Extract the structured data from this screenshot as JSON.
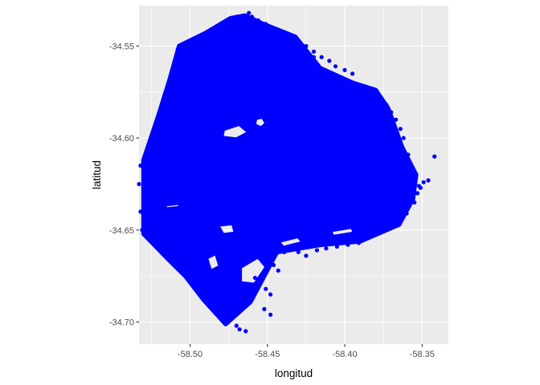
{
  "chart_data": {
    "type": "scatter",
    "title": "",
    "xlabel": "longitud",
    "ylabel": "latitud",
    "xlim": [
      -58.533,
      -58.333
    ],
    "ylim": [
      -34.712,
      -34.528
    ],
    "x_ticks": [
      -58.5,
      -58.45,
      -58.4,
      -58.35
    ],
    "y_ticks": [
      -34.55,
      -34.6,
      -34.65,
      -34.7
    ],
    "x_tick_labels": [
      "-58.50",
      "-58.45",
      "-58.40",
      "-58.35"
    ],
    "y_tick_labels": [
      "-34.55",
      "-34.60",
      "-34.65",
      "-34.70"
    ],
    "grid": true,
    "legend": "none",
    "point_color": "#0000ff",
    "panel_background": "#ebebeb",
    "grid_color": "#ffffff",
    "region_outline": [
      [
        -58.4645,
        -34.5335
      ],
      [
        -58.474,
        -34.535
      ],
      [
        -58.49,
        -34.543
      ],
      [
        -58.507,
        -34.55
      ],
      [
        -58.513,
        -34.568
      ],
      [
        -58.52,
        -34.587
      ],
      [
        -58.53,
        -34.612
      ],
      [
        -58.53,
        -34.652
      ],
      [
        -58.515,
        -34.665
      ],
      [
        -58.503,
        -34.675
      ],
      [
        -58.491,
        -34.688
      ],
      [
        -58.477,
        -34.701
      ],
      [
        -58.461,
        -34.689
      ],
      [
        -58.444,
        -34.662
      ],
      [
        -58.416,
        -34.658
      ],
      [
        -58.39,
        -34.656
      ],
      [
        -58.365,
        -34.647
      ],
      [
        -58.356,
        -34.633
      ],
      [
        -58.354,
        -34.62
      ],
      [
        -58.363,
        -34.605
      ],
      [
        -58.372,
        -34.584
      ],
      [
        -58.38,
        -34.574
      ],
      [
        -58.395,
        -34.57
      ],
      [
        -58.416,
        -34.562
      ],
      [
        -58.432,
        -34.545
      ],
      [
        -58.453,
        -34.538
      ]
    ],
    "holes": [
      [
        [
          -58.479,
          -34.595
        ],
        [
          -58.468,
          -34.592
        ],
        [
          -58.461,
          -34.597
        ],
        [
          -58.47,
          -34.601
        ],
        [
          -58.48,
          -34.6
        ]
      ],
      [
        [
          -58.458,
          -34.589
        ],
        [
          -58.453,
          -34.588
        ],
        [
          -58.45,
          -34.592
        ],
        [
          -58.454,
          -34.595
        ],
        [
          -58.459,
          -34.593
        ]
      ],
      [
        [
          -58.517,
          -34.636
        ],
        [
          -58.507,
          -34.635
        ],
        [
          -58.505,
          -34.638
        ],
        [
          -58.516,
          -34.639
        ]
      ],
      [
        [
          -58.483,
          -34.647
        ],
        [
          -58.472,
          -34.646
        ],
        [
          -58.47,
          -34.652
        ],
        [
          -58.479,
          -34.653
        ]
      ],
      [
        [
          -58.468,
          -34.67
        ],
        [
          -58.456,
          -34.664
        ],
        [
          -58.45,
          -34.67
        ],
        [
          -58.458,
          -34.68
        ],
        [
          -58.468,
          -34.679
        ]
      ],
      [
        [
          -58.49,
          -34.665
        ],
        [
          -58.483,
          -34.662
        ],
        [
          -58.48,
          -34.67
        ],
        [
          -58.487,
          -34.673
        ]
      ],
      [
        [
          -58.444,
          -34.656
        ],
        [
          -58.43,
          -34.653
        ],
        [
          -58.426,
          -34.657
        ],
        [
          -58.44,
          -34.66
        ]
      ],
      [
        [
          -58.41,
          -34.65
        ],
        [
          -58.395,
          -34.648
        ],
        [
          -58.393,
          -34.652
        ],
        [
          -58.408,
          -34.654
        ]
      ]
    ],
    "outlier_points": [
      [
        -58.342,
        -34.61
      ],
      [
        -58.346,
        -34.623
      ],
      [
        -58.349,
        -34.624
      ],
      [
        -58.352,
        -34.626
      ],
      [
        -58.356,
        -34.619
      ],
      [
        -58.358,
        -34.615
      ],
      [
        -58.359,
        -34.609
      ],
      [
        -58.362,
        -34.6
      ],
      [
        -58.364,
        -34.595
      ],
      [
        -58.367,
        -34.59
      ],
      [
        -58.37,
        -34.586
      ],
      [
        -58.373,
        -34.582
      ],
      [
        -58.378,
        -34.578
      ],
      [
        -58.382,
        -34.576
      ],
      [
        -58.386,
        -34.574
      ],
      [
        -58.39,
        -34.572
      ],
      [
        -58.395,
        -34.565
      ],
      [
        -58.4,
        -34.563
      ],
      [
        -58.406,
        -34.561
      ],
      [
        -58.41,
        -34.558
      ],
      [
        -58.415,
        -34.556
      ],
      [
        -58.42,
        -34.553
      ],
      [
        -58.425,
        -34.55
      ],
      [
        -58.43,
        -34.548
      ],
      [
        -58.434,
        -34.546
      ],
      [
        -58.439,
        -34.544
      ],
      [
        -58.443,
        -34.542
      ],
      [
        -58.447,
        -34.54
      ],
      [
        -58.451,
        -34.538
      ],
      [
        -58.456,
        -34.536
      ],
      [
        -58.46,
        -34.534
      ],
      [
        -58.462,
        -34.532
      ],
      [
        -58.458,
        -34.538
      ],
      [
        -58.454,
        -34.541
      ],
      [
        -58.449,
        -34.543
      ],
      [
        -58.444,
        -34.545
      ],
      [
        -58.438,
        -34.548
      ],
      [
        -58.432,
        -34.55
      ],
      [
        -58.426,
        -34.553
      ],
      [
        -58.42,
        -34.556
      ],
      [
        -58.468,
        -34.704
      ],
      [
        -58.464,
        -34.705
      ],
      [
        -58.47,
        -34.702
      ],
      [
        -58.476,
        -34.699
      ],
      [
        -58.448,
        -34.685
      ],
      [
        -58.451,
        -34.682
      ],
      [
        -58.455,
        -34.679
      ],
      [
        -58.458,
        -34.676
      ],
      [
        -58.443,
        -34.672
      ],
      [
        -58.446,
        -34.669
      ],
      [
        -58.425,
        -34.664
      ],
      [
        -58.43,
        -34.662
      ],
      [
        -58.439,
        -34.662
      ],
      [
        -58.418,
        -34.661
      ],
      [
        -58.412,
        -34.66
      ],
      [
        -58.405,
        -34.659
      ],
      [
        -58.398,
        -34.658
      ],
      [
        -58.391,
        -34.657
      ],
      [
        -58.385,
        -34.654
      ],
      [
        -58.378,
        -34.651
      ],
      [
        -58.372,
        -34.649
      ],
      [
        -58.367,
        -34.647
      ],
      [
        -58.363,
        -34.644
      ],
      [
        -58.36,
        -34.641
      ],
      [
        -58.532,
        -34.615
      ],
      [
        -58.533,
        -34.625
      ],
      [
        -58.532,
        -34.64
      ],
      [
        -58.531,
        -34.65
      ],
      [
        -58.51,
        -34.56
      ],
      [
        -58.508,
        -34.552
      ],
      [
        -58.47,
        -34.534
      ],
      [
        -58.478,
        -34.538
      ],
      [
        -58.485,
        -34.541
      ],
      [
        -58.495,
        -34.545
      ],
      [
        -58.502,
        -34.548
      ],
      [
        -58.355,
        -34.635
      ],
      [
        -58.353,
        -34.63
      ],
      [
        -58.351,
        -34.627
      ],
      [
        -58.448,
        -34.696
      ],
      [
        -58.452,
        -34.693
      ]
    ]
  }
}
